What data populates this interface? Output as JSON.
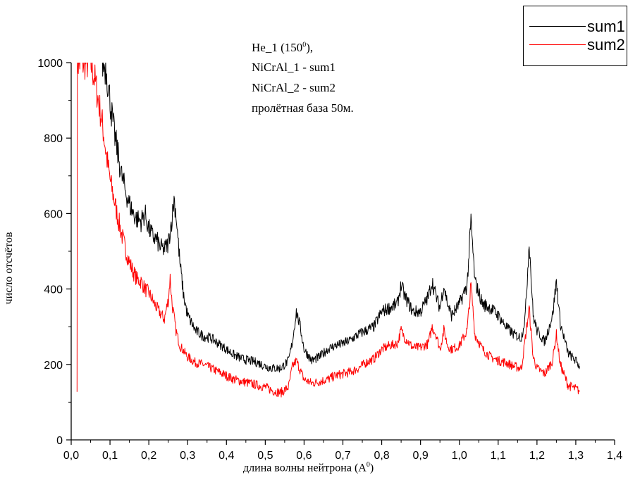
{
  "chart_data": {
    "type": "line",
    "xlabel_main": "длина волны нейтрона (A",
    "xlabel_sup": "0",
    "xlabel_tail": ")",
    "ylabel": "число отсчётов",
    "xlim": [
      0.0,
      1.4
    ],
    "ylim": [
      0,
      1000
    ],
    "x_ticks": [
      0.0,
      0.1,
      0.2,
      0.3,
      0.4,
      0.5,
      0.6,
      0.7,
      0.8,
      0.9,
      1.0,
      1.1,
      1.2,
      1.3,
      1.4
    ],
    "x_tick_labels": [
      "0,0",
      "0,1",
      "0,2",
      "0,3",
      "0,4",
      "0,5",
      "0,6",
      "0,7",
      "0,8",
      "0,9",
      "1,0",
      "1,1",
      "1,2",
      "1,3",
      "1,4"
    ],
    "y_ticks": [
      0,
      200,
      400,
      600,
      800,
      1000
    ],
    "y_tick_labels": [
      "0",
      "200",
      "400",
      "600",
      "800",
      "1000"
    ],
    "grid": false,
    "legend_position": "top-right",
    "annotation": {
      "line1_main": "He_1 (150",
      "line1_sup": "0",
      "line1_tail": "),",
      "line2": "NiCrAl_1 - sum1",
      "line3": "NiCrAl_2 - sum2",
      "line4": "пролётная база 50м."
    },
    "series": [
      {
        "name": "sum1",
        "color": "#000000",
        "x": [
          0.08,
          0.09,
          0.1,
          0.11,
          0.12,
          0.13,
          0.14,
          0.15,
          0.16,
          0.17,
          0.18,
          0.19,
          0.2,
          0.21,
          0.22,
          0.23,
          0.24,
          0.25,
          0.26,
          0.265,
          0.27,
          0.28,
          0.29,
          0.3,
          0.32,
          0.34,
          0.36,
          0.38,
          0.4,
          0.42,
          0.44,
          0.46,
          0.48,
          0.5,
          0.52,
          0.54,
          0.56,
          0.57,
          0.58,
          0.59,
          0.6,
          0.62,
          0.64,
          0.66,
          0.68,
          0.7,
          0.72,
          0.74,
          0.76,
          0.78,
          0.8,
          0.82,
          0.84,
          0.85,
          0.86,
          0.88,
          0.9,
          0.92,
          0.93,
          0.94,
          0.95,
          0.96,
          0.97,
          0.98,
          1.0,
          1.02,
          1.03,
          1.04,
          1.06,
          1.08,
          1.1,
          1.12,
          1.14,
          1.16,
          1.17,
          1.18,
          1.19,
          1.2,
          1.22,
          1.24,
          1.25,
          1.26,
          1.28,
          1.3,
          1.31
        ],
        "values": [
          1000,
          985,
          900,
          820,
          760,
          700,
          660,
          625,
          600,
          585,
          580,
          600,
          560,
          540,
          530,
          510,
          505,
          520,
          590,
          640,
          600,
          470,
          380,
          330,
          290,
          275,
          270,
          255,
          240,
          225,
          215,
          210,
          205,
          195,
          190,
          190,
          210,
          260,
          340,
          300,
          240,
          210,
          220,
          240,
          250,
          255,
          265,
          280,
          290,
          300,
          340,
          350,
          360,
          410,
          380,
          340,
          340,
          380,
          420,
          380,
          350,
          410,
          360,
          330,
          360,
          410,
          580,
          420,
          360,
          350,
          330,
          300,
          280,
          270,
          330,
          530,
          330,
          290,
          260,
          330,
          420,
          310,
          230,
          210,
          195
        ]
      },
      {
        "name": "sum2",
        "color": "#ff0000",
        "x": [
          0.015,
          0.016,
          0.05,
          0.06,
          0.07,
          0.08,
          0.09,
          0.1,
          0.11,
          0.12,
          0.13,
          0.14,
          0.15,
          0.16,
          0.17,
          0.18,
          0.19,
          0.2,
          0.21,
          0.22,
          0.23,
          0.24,
          0.25,
          0.255,
          0.26,
          0.27,
          0.28,
          0.3,
          0.32,
          0.34,
          0.36,
          0.38,
          0.4,
          0.42,
          0.44,
          0.46,
          0.48,
          0.5,
          0.52,
          0.54,
          0.56,
          0.57,
          0.58,
          0.6,
          0.62,
          0.64,
          0.66,
          0.68,
          0.7,
          0.72,
          0.74,
          0.76,
          0.78,
          0.8,
          0.82,
          0.84,
          0.85,
          0.86,
          0.88,
          0.9,
          0.92,
          0.93,
          0.94,
          0.95,
          0.96,
          0.97,
          0.98,
          1.0,
          1.02,
          1.03,
          1.04,
          1.06,
          1.08,
          1.1,
          1.12,
          1.14,
          1.16,
          1.17,
          1.18,
          1.19,
          1.2,
          1.22,
          1.24,
          1.25,
          1.26,
          1.28,
          1.3,
          1.31
        ],
        "values": [
          140,
          1000,
          1000,
          960,
          900,
          840,
          760,
          690,
          640,
          590,
          545,
          505,
          470,
          445,
          425,
          420,
          400,
          390,
          370,
          350,
          335,
          320,
          370,
          430,
          360,
          290,
          250,
          220,
          205,
          200,
          190,
          180,
          170,
          160,
          155,
          150,
          145,
          140,
          130,
          125,
          140,
          195,
          210,
          160,
          150,
          155,
          160,
          170,
          175,
          180,
          190,
          205,
          215,
          240,
          250,
          255,
          290,
          270,
          245,
          245,
          255,
          300,
          280,
          240,
          290,
          250,
          240,
          250,
          290,
          410,
          280,
          240,
          220,
          210,
          205,
          195,
          190,
          270,
          350,
          220,
          190,
          175,
          210,
          280,
          200,
          145,
          135,
          130
        ]
      }
    ]
  }
}
